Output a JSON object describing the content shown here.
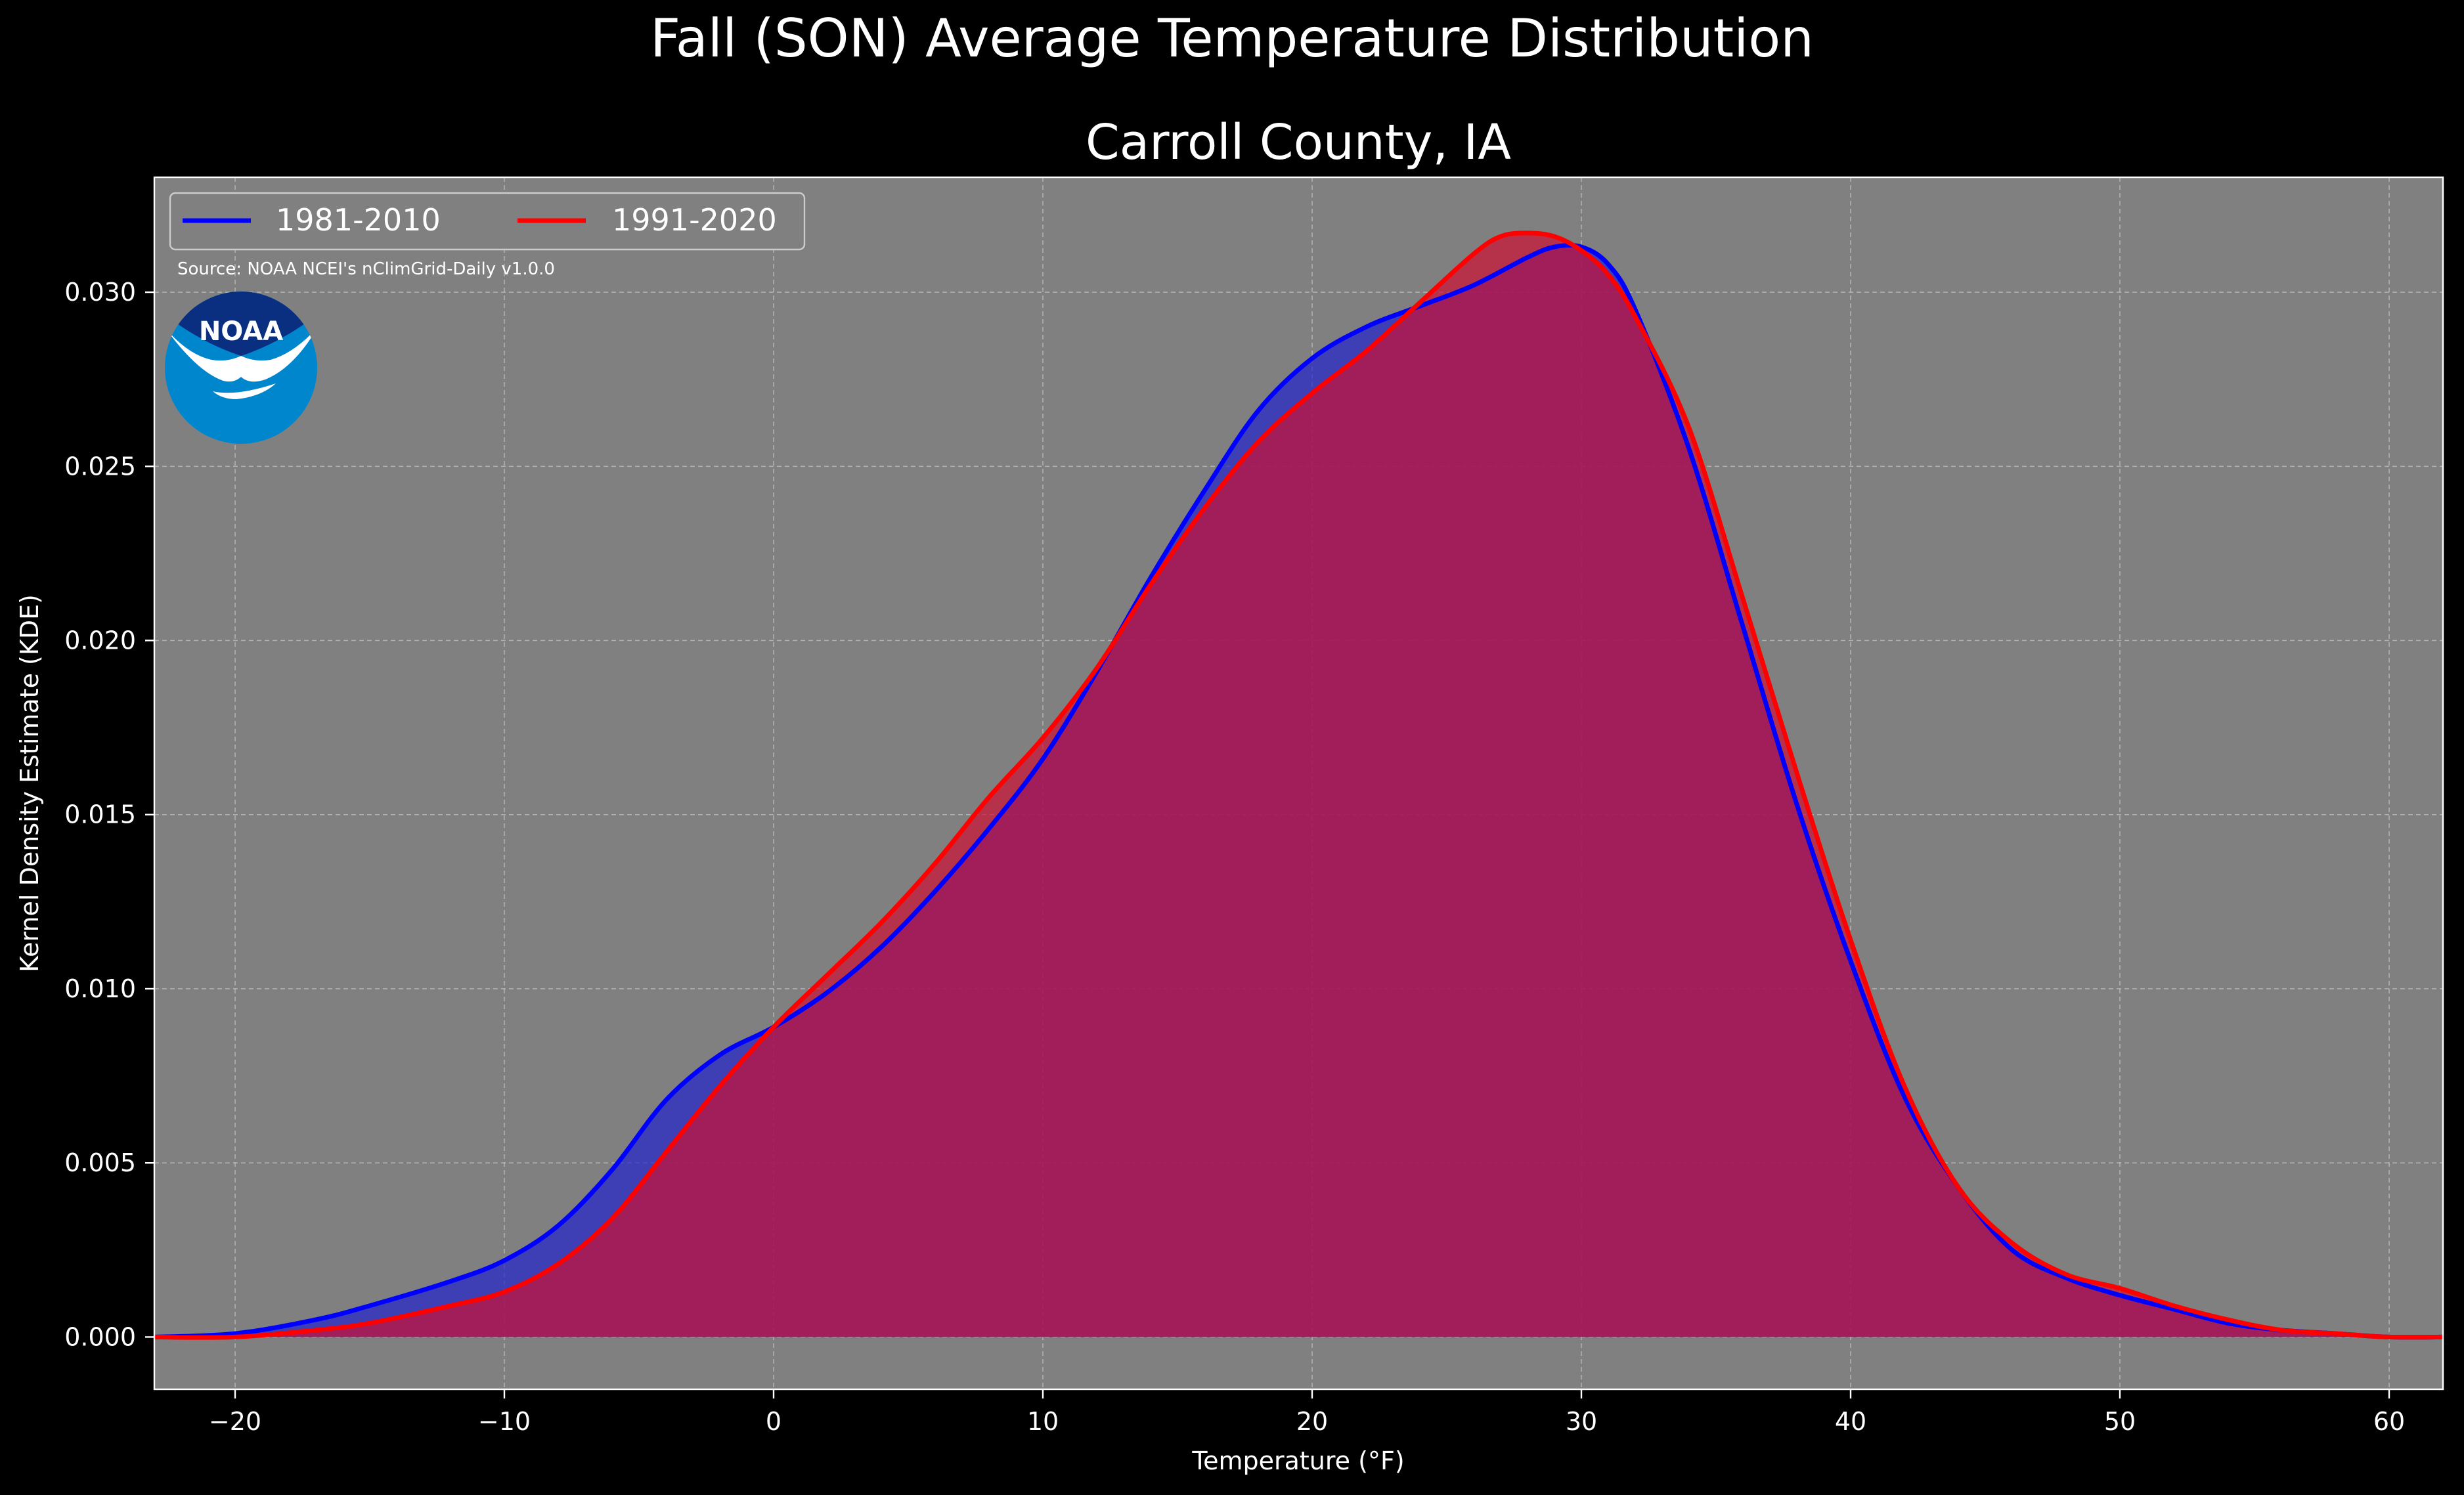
{
  "suptitle": "Fall (SON) Average Temperature Distribution",
  "chart_data": {
    "type": "area",
    "title": "Carroll County, IA",
    "xlabel": "Temperature ($^\\circ$F)",
    "xlabel_display": "Temperature (°F)",
    "ylabel": "Kernel Density Estimate (KDE)",
    "xlim": [
      -23,
      62
    ],
    "ylim": [
      -0.0015,
      0.0333
    ],
    "x_ticks": [
      -20,
      -10,
      0,
      10,
      20,
      30,
      40,
      50,
      60
    ],
    "x_tick_labels": [
      "−20",
      "−10",
      "0",
      "10",
      "20",
      "30",
      "40",
      "50",
      "60"
    ],
    "y_ticks": [
      0.0,
      0.005,
      0.01,
      0.015,
      0.02,
      0.025,
      0.03
    ],
    "y_tick_labels": [
      "0.000",
      "0.005",
      "0.010",
      "0.015",
      "0.020",
      "0.025",
      "0.030"
    ],
    "grid": true,
    "legend": {
      "placement": "top-left",
      "columns": 2
    },
    "source_text": "Source: NOAA NCEI's nClimGrid-Daily v1.0.0",
    "logo_text": "NOAA",
    "background_color": "#808080",
    "series": [
      {
        "name": "1981-2010",
        "color": "#0000ff",
        "fill_color": "#2222cc",
        "x": [
          -23,
          -20,
          -17,
          -15,
          -12,
          -10,
          -8,
          -6,
          -4,
          -2,
          0,
          2,
          4,
          6,
          8,
          10,
          12,
          14,
          16,
          18,
          20,
          22,
          24,
          26,
          28,
          29,
          30,
          31,
          32,
          34,
          36,
          38,
          40,
          42,
          44,
          46,
          48,
          50,
          52,
          54,
          56,
          58,
          60,
          62
        ],
        "values": [
          0.0,
          0.0001,
          0.0005,
          0.0009,
          0.0016,
          0.0022,
          0.0032,
          0.0048,
          0.0068,
          0.0081,
          0.0089,
          0.0099,
          0.0112,
          0.0128,
          0.0146,
          0.0166,
          0.0191,
          0.0218,
          0.0243,
          0.0266,
          0.0281,
          0.029,
          0.0296,
          0.0302,
          0.031,
          0.0313,
          0.0313,
          0.0308,
          0.0295,
          0.0255,
          0.0204,
          0.0153,
          0.0108,
          0.0069,
          0.0043,
          0.0025,
          0.0017,
          0.0012,
          0.0008,
          0.0004,
          0.0002,
          0.0001,
          0.0,
          0.0
        ]
      },
      {
        "name": "1991-2020",
        "color": "#ff0000",
        "fill_color": "#cc1133",
        "x": [
          -23,
          -20,
          -17,
          -15,
          -12,
          -10,
          -8,
          -6,
          -4,
          -2,
          0,
          2,
          4,
          6,
          8,
          10,
          12,
          14,
          16,
          18,
          20,
          22,
          24,
          26,
          27,
          28,
          29,
          30,
          31,
          32,
          34,
          36,
          38,
          40,
          42,
          44,
          46,
          48,
          50,
          52,
          54,
          56,
          58,
          60,
          62
        ],
        "values": [
          0.0,
          0.0,
          0.0002,
          0.0004,
          0.0009,
          0.0013,
          0.0021,
          0.0034,
          0.0053,
          0.0072,
          0.0089,
          0.0104,
          0.0119,
          0.0136,
          0.0155,
          0.0172,
          0.0192,
          0.0216,
          0.0238,
          0.0257,
          0.0271,
          0.0283,
          0.0297,
          0.0311,
          0.0316,
          0.0317,
          0.0316,
          0.0312,
          0.0305,
          0.0293,
          0.0261,
          0.0212,
          0.0162,
          0.0114,
          0.0072,
          0.0043,
          0.0027,
          0.0018,
          0.0014,
          0.0009,
          0.0005,
          0.0002,
          0.0001,
          0.0,
          0.0
        ]
      }
    ]
  }
}
